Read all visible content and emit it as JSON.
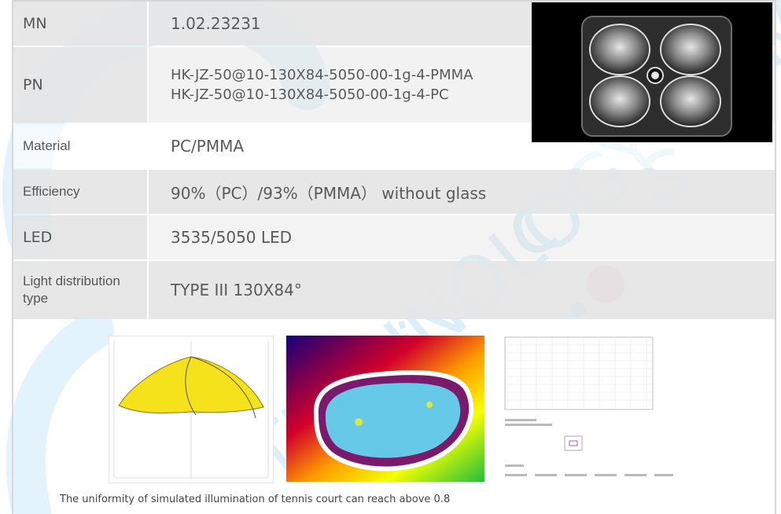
{
  "specs": {
    "mn": {
      "label": "MN",
      "value": "1.02.23231"
    },
    "pn": {
      "label": "PN",
      "values": [
        "HK-JZ-50@10-130X84-5050-00-1g-4-PMMA",
        "HK-JZ-50@10-130X84-5050-00-1g-4-PC"
      ]
    },
    "material": {
      "label": "Material",
      "value": "PC/PMMA"
    },
    "efficiency": {
      "label": "Efficiency",
      "value": "90%（PC）/93%（PMMA） without glass"
    },
    "led": {
      "label": "LED",
      "value": "3535/5050 LED"
    },
    "distribution": {
      "label": "Light distribution type",
      "value": "TYPE III  130X84°"
    }
  },
  "caption": "The uniformity of simulated illumination of tennis court can reach above 0.8",
  "watermark": {
    "text": "TECHNOLOGY COMPANY",
    "letters": [
      "o",
      "n",
      "i",
      "c",
      "s"
    ],
    "color": "#1aa0e0",
    "dot_color": "#e0204a"
  },
  "images": {
    "product_photo": "lens-array-photo",
    "polar_plot": "light-distribution-curve",
    "heatmap": "tennis-court-illuminance-heatmap",
    "grid_table": "illuminance-grid-table"
  }
}
